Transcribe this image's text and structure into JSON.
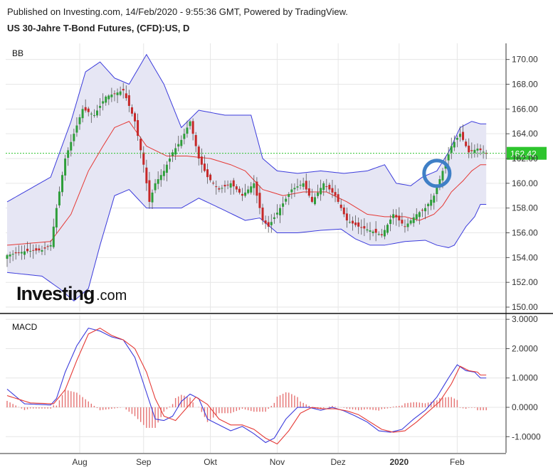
{
  "header": {
    "published": "Published on Investing.com, 14/Feb/2020 - 9:55:36 GMT, Powered by TradingView.",
    "title": "US 30-Jahre T-Bond Futures, (CFD):US, D"
  },
  "colors": {
    "up": "#2e9e3a",
    "down": "#c62828",
    "bb_band": "#3b3bdc",
    "bb_fill": "#e6e6f4",
    "bb_mid": "#e53935",
    "macd": "#3b3bdc",
    "signal": "#e53935",
    "hist": "#e57373",
    "last_price": "#2ec52e",
    "marker": "#3f7fc6"
  },
  "logo": {
    "text_bold": "Investing",
    "text_light": ".com"
  },
  "chart_data": [
    {
      "type": "candlestick",
      "panel_label": "BB",
      "ylim": [
        149.6,
        171.3
      ],
      "y_ticks": [
        "170.00",
        "168.00",
        "166.00",
        "164.00",
        "162.00",
        "160.00",
        "158.00",
        "156.00",
        "154.00",
        "152.00",
        "150.00"
      ],
      "last_price": "162.42",
      "x_labels": [
        "Aug",
        "Sep",
        "Okt",
        "Nov",
        "Dez",
        "2020",
        "Feb"
      ],
      "x_label_index": [
        25,
        47,
        70,
        93,
        114,
        135,
        155
      ],
      "ohlc_anchors": [
        [
          0,
          154.2
        ],
        [
          6,
          154.5
        ],
        [
          12,
          154.6
        ],
        [
          15,
          155.0
        ],
        [
          17,
          158.0
        ],
        [
          20,
          162.0
        ],
        [
          23,
          164.0
        ],
        [
          26,
          166.0
        ],
        [
          30,
          165.5
        ],
        [
          34,
          167.0
        ],
        [
          40,
          167.5
        ],
        [
          44,
          165.0
        ],
        [
          47,
          161.5
        ],
        [
          49,
          158.5
        ],
        [
          51,
          160.0
        ],
        [
          54,
          161.0
        ],
        [
          57,
          162.5
        ],
        [
          60,
          163.5
        ],
        [
          63,
          165.0
        ],
        [
          66,
          162.0
        ],
        [
          69,
          160.5
        ],
        [
          73,
          159.5
        ],
        [
          77,
          160.0
        ],
        [
          81,
          159.0
        ],
        [
          85,
          160.0
        ],
        [
          88,
          157.0
        ],
        [
          90,
          156.5
        ],
        [
          94,
          158.0
        ],
        [
          98,
          159.5
        ],
        [
          102,
          160.0
        ],
        [
          105,
          158.5
        ],
        [
          109,
          160.0
        ],
        [
          113,
          159.0
        ],
        [
          117,
          157.0
        ],
        [
          121,
          156.5
        ],
        [
          125,
          156.2
        ],
        [
          129,
          155.8
        ],
        [
          133,
          157.5
        ],
        [
          137,
          156.5
        ],
        [
          141,
          157.5
        ],
        [
          144,
          158.0
        ],
        [
          147,
          159.0
        ],
        [
          150,
          161.0
        ],
        [
          153,
          163.0
        ],
        [
          156,
          164.0
        ],
        [
          159,
          162.5
        ],
        [
          162,
          162.8
        ],
        [
          165,
          162.42
        ]
      ],
      "bb_upper": [
        [
          0,
          158.5
        ],
        [
          15,
          160.5
        ],
        [
          22,
          165.0
        ],
        [
          27,
          169.0
        ],
        [
          32,
          169.8
        ],
        [
          37,
          168.5
        ],
        [
          42,
          168.0
        ],
        [
          48,
          170.4
        ],
        [
          54,
          168.0
        ],
        [
          60,
          164.5
        ],
        [
          66,
          165.9
        ],
        [
          75,
          165.5
        ],
        [
          84,
          165.5
        ],
        [
          88,
          162.0
        ],
        [
          93,
          161.0
        ],
        [
          100,
          160.8
        ],
        [
          108,
          161.0
        ],
        [
          116,
          160.8
        ],
        [
          124,
          161.0
        ],
        [
          130,
          161.5
        ],
        [
          134,
          160.0
        ],
        [
          139,
          159.8
        ],
        [
          143,
          160.5
        ],
        [
          148,
          161.0
        ],
        [
          152,
          162.5
        ],
        [
          156,
          164.5
        ],
        [
          160,
          165.0
        ],
        [
          163,
          164.8
        ]
      ],
      "bb_middle": [
        [
          0,
          155.0
        ],
        [
          15,
          155.3
        ],
        [
          22,
          157.5
        ],
        [
          28,
          161.0
        ],
        [
          33,
          163.0
        ],
        [
          37,
          164.5
        ],
        [
          42,
          165.0
        ],
        [
          48,
          163.0
        ],
        [
          55,
          162.2
        ],
        [
          62,
          162.2
        ],
        [
          70,
          162.0
        ],
        [
          77,
          161.5
        ],
        [
          82,
          161.0
        ],
        [
          88,
          159.5
        ],
        [
          95,
          159.0
        ],
        [
          102,
          159.3
        ],
        [
          110,
          159.3
        ],
        [
          117,
          158.5
        ],
        [
          124,
          157.5
        ],
        [
          130,
          157.3
        ],
        [
          137,
          157.3
        ],
        [
          142,
          157.0
        ],
        [
          147,
          157.5
        ],
        [
          150,
          158.2
        ],
        [
          153,
          159.3
        ],
        [
          157,
          160.2
        ],
        [
          160,
          161.0
        ],
        [
          163,
          161.5
        ]
      ],
      "bb_lower": [
        [
          0,
          152.8
        ],
        [
          12,
          152.5
        ],
        [
          18,
          151.5
        ],
        [
          23,
          150.5
        ],
        [
          28,
          151.5
        ],
        [
          32,
          155.0
        ],
        [
          37,
          159.0
        ],
        [
          42,
          159.5
        ],
        [
          48,
          158.0
        ],
        [
          54,
          158.0
        ],
        [
          60,
          158.0
        ],
        [
          66,
          158.8
        ],
        [
          75,
          157.8
        ],
        [
          82,
          157.0
        ],
        [
          87,
          157.2
        ],
        [
          93,
          156.0
        ],
        [
          100,
          156.0
        ],
        [
          108,
          156.2
        ],
        [
          115,
          156.3
        ],
        [
          120,
          155.5
        ],
        [
          125,
          155.0
        ],
        [
          130,
          155.0
        ],
        [
          137,
          155.3
        ],
        [
          144,
          155.4
        ],
        [
          148,
          155.0
        ],
        [
          152,
          154.8
        ],
        [
          154,
          155.0
        ],
        [
          158,
          156.5
        ],
        [
          161,
          157.3
        ],
        [
          163,
          158.3
        ]
      ],
      "marker_at": {
        "index": 148,
        "price": 160.8
      }
    },
    {
      "type": "line",
      "panel_label": "MACD",
      "ylim": [
        -1.55,
        3.15
      ],
      "y_ticks": [
        "3.0000",
        "2.0000",
        "1.0000",
        "0.0000",
        "-1.0000"
      ],
      "macd": [
        [
          0,
          0.62
        ],
        [
          6,
          0.12
        ],
        [
          15,
          0.08
        ],
        [
          17,
          0.3
        ],
        [
          20,
          1.2
        ],
        [
          24,
          2.1
        ],
        [
          28,
          2.7
        ],
        [
          32,
          2.6
        ],
        [
          36,
          2.4
        ],
        [
          40,
          2.3
        ],
        [
          44,
          1.7
        ],
        [
          48,
          0.5
        ],
        [
          51,
          -0.4
        ],
        [
          54,
          -0.45
        ],
        [
          57,
          -0.3
        ],
        [
          60,
          0.2
        ],
        [
          63,
          0.45
        ],
        [
          66,
          0.3
        ],
        [
          69,
          -0.4
        ],
        [
          73,
          -0.6
        ],
        [
          77,
          -0.8
        ],
        [
          81,
          -0.65
        ],
        [
          85,
          -0.9
        ],
        [
          89,
          -1.2
        ],
        [
          92,
          -1.05
        ],
        [
          96,
          -0.4
        ],
        [
          100,
          0.0
        ],
        [
          104,
          0.0
        ],
        [
          108,
          -0.1
        ],
        [
          112,
          0.0
        ],
        [
          116,
          -0.12
        ],
        [
          120,
          -0.3
        ],
        [
          124,
          -0.5
        ],
        [
          128,
          -0.8
        ],
        [
          132,
          -0.85
        ],
        [
          136,
          -0.75
        ],
        [
          140,
          -0.4
        ],
        [
          144,
          -0.1
        ],
        [
          148,
          0.35
        ],
        [
          152,
          1.0
        ],
        [
          155,
          1.45
        ],
        [
          158,
          1.25
        ],
        [
          161,
          1.2
        ],
        [
          163,
          1.0
        ]
      ],
      "signal": [
        [
          0,
          0.4
        ],
        [
          8,
          0.15
        ],
        [
          16,
          0.12
        ],
        [
          20,
          0.6
        ],
        [
          24,
          1.6
        ],
        [
          28,
          2.5
        ],
        [
          32,
          2.7
        ],
        [
          36,
          2.45
        ],
        [
          40,
          2.3
        ],
        [
          44,
          2.0
        ],
        [
          48,
          1.2
        ],
        [
          51,
          0.3
        ],
        [
          54,
          -0.3
        ],
        [
          58,
          -0.45
        ],
        [
          62,
          0.0
        ],
        [
          65,
          0.35
        ],
        [
          69,
          0.1
        ],
        [
          73,
          -0.4
        ],
        [
          77,
          -0.6
        ],
        [
          81,
          -0.6
        ],
        [
          85,
          -0.75
        ],
        [
          89,
          -1.05
        ],
        [
          93,
          -1.25
        ],
        [
          97,
          -0.8
        ],
        [
          101,
          -0.2
        ],
        [
          105,
          0.0
        ],
        [
          109,
          -0.05
        ],
        [
          113,
          -0.05
        ],
        [
          117,
          -0.12
        ],
        [
          121,
          -0.25
        ],
        [
          125,
          -0.5
        ],
        [
          129,
          -0.75
        ],
        [
          133,
          -0.85
        ],
        [
          137,
          -0.8
        ],
        [
          141,
          -0.5
        ],
        [
          145,
          -0.15
        ],
        [
          149,
          0.2
        ],
        [
          153,
          0.8
        ],
        [
          156,
          1.4
        ],
        [
          159,
          1.25
        ],
        [
          162,
          1.2
        ],
        [
          163,
          1.1
        ]
      ]
    }
  ]
}
